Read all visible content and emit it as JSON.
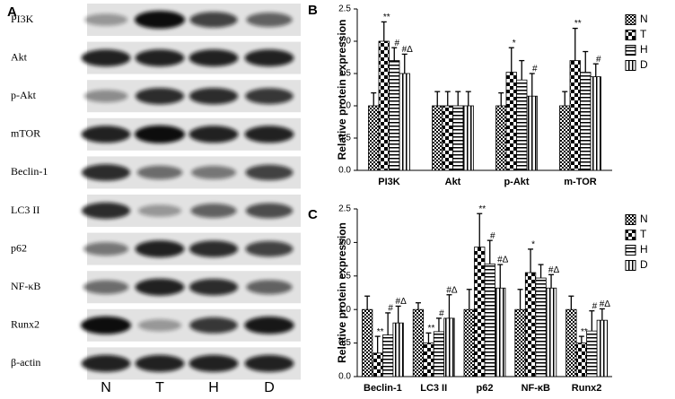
{
  "blot": {
    "panel": "A",
    "rows": [
      "PI3K",
      "Akt",
      "p-Akt",
      "mTOR",
      "Beclin-1",
      "LC3 II",
      "p62",
      "NF-κB",
      "Runx2",
      "β-actin"
    ],
    "lanes": [
      "N",
      "T",
      "H",
      "D"
    ]
  },
  "chart_data": [
    {
      "type": "bar",
      "panel": "B",
      "y_label": "Relative protein expression",
      "categories": [
        "PI3K",
        "Akt",
        "p-Akt",
        "m-TOR"
      ],
      "series": [
        {
          "name": "N",
          "color": "#000000",
          "values": [
            1.0,
            1.0,
            1.0,
            1.0
          ],
          "errors": [
            0.2,
            0.22,
            0.2,
            0.22
          ],
          "annotations": [
            null,
            null,
            null,
            null
          ]
        },
        {
          "name": "T",
          "color": "#000000",
          "values": [
            2.0,
            1.0,
            1.52,
            1.7
          ],
          "errors": [
            0.3,
            0.22,
            0.38,
            0.5
          ],
          "annotations": [
            "**",
            null,
            "*",
            "**"
          ]
        },
        {
          "name": "H",
          "color": "#000000",
          "values": [
            1.7,
            1.0,
            1.4,
            1.52
          ],
          "errors": [
            0.2,
            0.22,
            0.3,
            0.32
          ],
          "annotations": [
            "#",
            null,
            null,
            null
          ]
        },
        {
          "name": "D",
          "color": "#000000",
          "values": [
            1.5,
            1.0,
            1.15,
            1.45
          ],
          "errors": [
            0.3,
            0.22,
            0.35,
            0.2
          ],
          "annotations": [
            "#Δ",
            null,
            "#",
            "#"
          ]
        }
      ],
      "ylim": [
        0,
        2.5
      ],
      "yticks": [
        {
          "value": 0,
          "label": "0.0"
        },
        {
          "value": 0.5,
          "label": "0.5"
        },
        {
          "value": 1,
          "label": "1.0"
        },
        {
          "value": 1.5,
          "label": "1.5"
        },
        {
          "value": 2,
          "label": "2.0"
        },
        {
          "value": 2.5,
          "label": "2.5"
        }
      ],
      "legend": "right"
    },
    {
      "type": "bar",
      "panel": "C",
      "y_label": "Relative protein expression",
      "categories": [
        "Beclin-1",
        "LC3 II",
        "p62",
        "NF-κB",
        "Runx2"
      ],
      "series": [
        {
          "name": "N",
          "color": "#000000",
          "values": [
            1.0,
            1.0,
            1.0,
            1.0,
            1.0
          ],
          "errors": [
            0.2,
            0.1,
            0.3,
            0.3,
            0.2
          ],
          "annotations": [
            null,
            null,
            null,
            null,
            null
          ]
        },
        {
          "name": "T",
          "color": "#000000",
          "values": [
            0.35,
            0.5,
            1.93,
            1.55,
            0.5
          ],
          "errors": [
            0.25,
            0.15,
            0.5,
            0.35,
            0.1
          ],
          "annotations": [
            "**",
            "**",
            "**",
            "*",
            "**"
          ]
        },
        {
          "name": "H",
          "color": "#000000",
          "values": [
            0.62,
            0.67,
            1.68,
            1.47,
            0.68
          ],
          "errors": [
            0.33,
            0.2,
            0.35,
            0.2,
            0.3
          ],
          "annotations": [
            "#",
            "#",
            "#",
            null,
            "#"
          ]
        },
        {
          "name": "D",
          "color": "#000000",
          "values": [
            0.8,
            0.87,
            1.32,
            1.32,
            0.84
          ],
          "errors": [
            0.25,
            0.35,
            0.35,
            0.2,
            0.17
          ],
          "annotations": [
            "#Δ",
            "#Δ",
            "#Δ",
            "#Δ",
            "#Δ"
          ]
        }
      ],
      "ylim": [
        0,
        2.5
      ],
      "yticks": [
        {
          "value": 0,
          "label": "0.0"
        },
        {
          "value": 0.5,
          "label": "0.5"
        },
        {
          "value": 1,
          "label": "1.0"
        },
        {
          "value": 1.5,
          "label": "1.5"
        },
        {
          "value": 2,
          "label": "2.0"
        },
        {
          "value": 2.5,
          "label": "2.5"
        }
      ],
      "legend": "right"
    }
  ]
}
